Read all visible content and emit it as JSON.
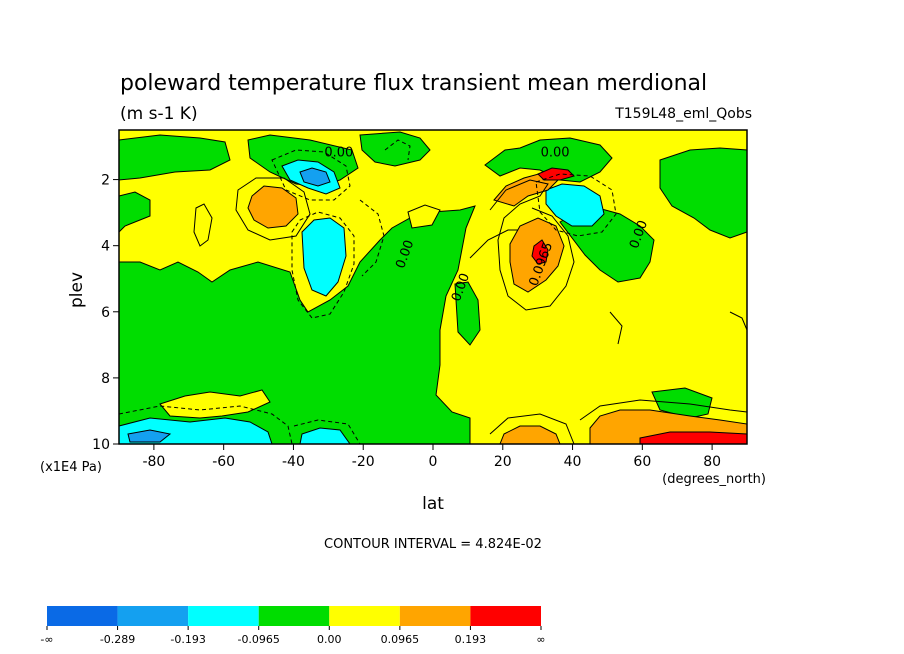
{
  "chart_data": {
    "type": "heatmap",
    "title": "poleward temperature flux transient mean merdional",
    "units": "(m s-1 K)",
    "dataset": "T159L48_eml_Qobs",
    "xlabel": "lat",
    "x_units": "(degrees_north)",
    "ylabel": "plev",
    "y_units": "(x1E4 Pa)",
    "xlim": [
      -90,
      90
    ],
    "ylim": [
      10,
      0.5
    ],
    "x_ticks": [
      -80,
      -60,
      -40,
      -20,
      0,
      20,
      40,
      60,
      80
    ],
    "x_tick_labels": [
      "-80",
      "-60",
      "-40",
      "-20",
      "0",
      "20",
      "40",
      "60",
      "80"
    ],
    "y_ticks": [
      2,
      4,
      6,
      8,
      10
    ],
    "y_tick_labels": [
      "2",
      "4",
      "6",
      "8",
      "10"
    ],
    "contour_interval_text": "CONTOUR INTERVAL = 4.824E-02",
    "contour_labels": [
      {
        "text": "0.00",
        "lat": -27,
        "plev": 1.3
      },
      {
        "text": "0.00",
        "lat": -7,
        "plev": 4.3
      },
      {
        "text": "0.00",
        "lat": 9,
        "plev": 5.3
      },
      {
        "text": "0.00",
        "lat": 35,
        "plev": 1.3
      },
      {
        "text": "0.0965",
        "lat": 32,
        "plev": 4.6
      },
      {
        "text": "0.00",
        "lat": 60,
        "plev": 3.7
      }
    ],
    "colorbar": {
      "levels": [
        "-∞",
        "-0.289",
        "-0.193",
        "-0.0965",
        "0.00",
        "0.0965",
        "0.193",
        "∞"
      ],
      "colors": [
        "#0a6ae6",
        "#14a0f0",
        "#00ffff",
        "#00dd00",
        "#ffff00",
        "#ffa500",
        "#ff0000"
      ]
    }
  }
}
